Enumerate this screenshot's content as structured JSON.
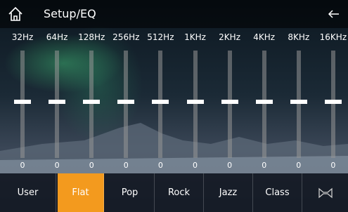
{
  "header": {
    "title": "Setup/EQ"
  },
  "bands": [
    {
      "label": "32Hz",
      "value": 0
    },
    {
      "label": "64Hz",
      "value": 0
    },
    {
      "label": "128Hz",
      "value": 0
    },
    {
      "label": "256Hz",
      "value": 0
    },
    {
      "label": "512Hz",
      "value": 0
    },
    {
      "label": "1KHz",
      "value": 0
    },
    {
      "label": "2KHz",
      "value": 0
    },
    {
      "label": "4KHz",
      "value": 0
    },
    {
      "label": "8KHz",
      "value": 0
    },
    {
      "label": "16KHz",
      "value": 0
    }
  ],
  "presets": {
    "items": [
      "User",
      "Flat",
      "Pop",
      "Rock",
      "Jazz",
      "Class"
    ],
    "selected": "Flat"
  }
}
